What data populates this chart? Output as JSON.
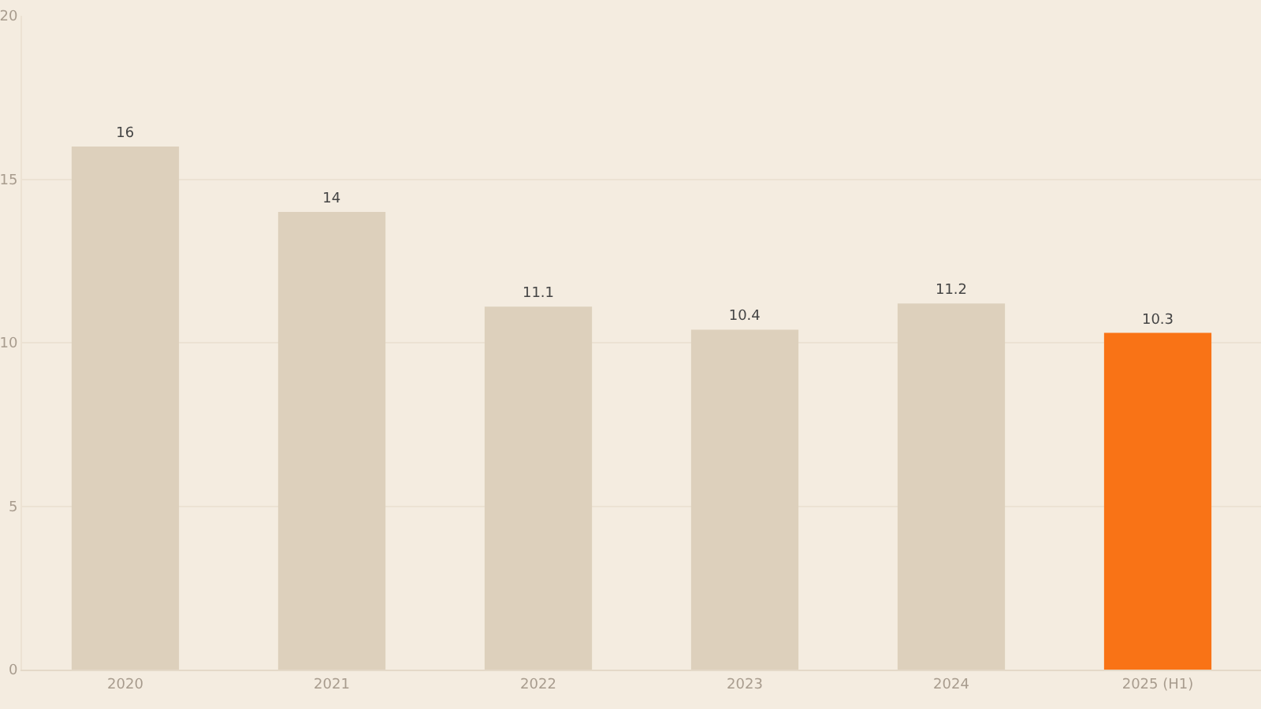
{
  "chart_data": {
    "type": "bar",
    "categories": [
      "2020",
      "2021",
      "2022",
      "2023",
      "2024",
      "2025 (H1)"
    ],
    "values": [
      16,
      14,
      11.1,
      10.4,
      11.2,
      10.3
    ],
    "colors": [
      "#ddd0bc",
      "#ddd0bc",
      "#ddd0bc",
      "#ddd0bc",
      "#ddd0bc",
      "#f97316"
    ],
    "ylim": [
      0,
      20
    ],
    "yticks": [
      0,
      5,
      10,
      15,
      20
    ],
    "grid": "y",
    "data_labels": true
  }
}
